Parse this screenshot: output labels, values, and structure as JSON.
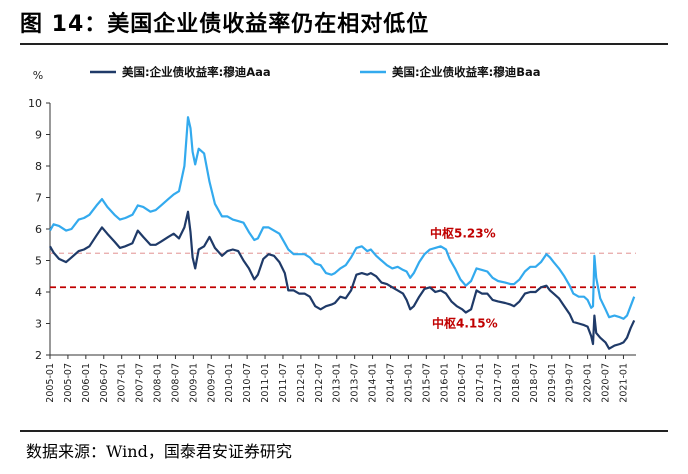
{
  "figure": {
    "title": "图 14：美国企业债收益率仍在相对低位",
    "source": "数据来源：Wind，国泰君安证券研究"
  },
  "chart_data": {
    "type": "line",
    "title": "美国企业债收益率仍在相对低位",
    "ylabel": "%",
    "ylim": [
      2,
      10
    ],
    "yticks": [
      2,
      3,
      4,
      5,
      6,
      7,
      8,
      9,
      10
    ],
    "x_range": [
      2005.0,
      2021.35
    ],
    "x_ticks": [
      "2005-01",
      "2005-07",
      "2006-01",
      "2006-07",
      "2007-01",
      "2007-07",
      "2008-01",
      "2008-07",
      "2009-01",
      "2009-07",
      "2010-01",
      "2010-07",
      "2011-01",
      "2011-07",
      "2012-01",
      "2012-07",
      "2013-01",
      "2013-07",
      "2014-01",
      "2014-07",
      "2015-01",
      "2015-07",
      "2016-01",
      "2016-07",
      "2017-01",
      "2017-07",
      "2018-01",
      "2018-07",
      "2019-01",
      "2019-07",
      "2020-01",
      "2020-07",
      "2021-01"
    ],
    "series": [
      {
        "name": "美国:企业债收益率:穆迪Aaa",
        "color": "#1f3a68",
        "points": [
          [
            2005.0,
            5.45
          ],
          [
            2005.1,
            5.25
          ],
          [
            2005.25,
            5.05
          ],
          [
            2005.45,
            4.95
          ],
          [
            2005.6,
            5.1
          ],
          [
            2005.8,
            5.3
          ],
          [
            2005.95,
            5.35
          ],
          [
            2006.1,
            5.45
          ],
          [
            2006.3,
            5.8
          ],
          [
            2006.45,
            6.05
          ],
          [
            2006.6,
            5.85
          ],
          [
            2006.8,
            5.6
          ],
          [
            2006.95,
            5.4
          ],
          [
            2007.1,
            5.45
          ],
          [
            2007.3,
            5.55
          ],
          [
            2007.45,
            5.95
          ],
          [
            2007.6,
            5.75
          ],
          [
            2007.8,
            5.5
          ],
          [
            2007.95,
            5.5
          ],
          [
            2008.1,
            5.6
          ],
          [
            2008.3,
            5.75
          ],
          [
            2008.45,
            5.85
          ],
          [
            2008.6,
            5.7
          ],
          [
            2008.75,
            6.05
          ],
          [
            2008.85,
            6.55
          ],
          [
            2008.92,
            5.9
          ],
          [
            2008.98,
            5.1
          ],
          [
            2009.05,
            4.75
          ],
          [
            2009.15,
            5.35
          ],
          [
            2009.3,
            5.45
          ],
          [
            2009.45,
            5.75
          ],
          [
            2009.6,
            5.4
          ],
          [
            2009.8,
            5.15
          ],
          [
            2009.95,
            5.3
          ],
          [
            2010.1,
            5.35
          ],
          [
            2010.25,
            5.3
          ],
          [
            2010.4,
            5.0
          ],
          [
            2010.55,
            4.75
          ],
          [
            2010.7,
            4.4
          ],
          [
            2010.8,
            4.55
          ],
          [
            2010.95,
            5.05
          ],
          [
            2011.1,
            5.2
          ],
          [
            2011.25,
            5.15
          ],
          [
            2011.4,
            4.95
          ],
          [
            2011.55,
            4.6
          ],
          [
            2011.65,
            4.05
          ],
          [
            2011.8,
            4.05
          ],
          [
            2011.95,
            3.95
          ],
          [
            2012.1,
            3.95
          ],
          [
            2012.25,
            3.85
          ],
          [
            2012.4,
            3.55
          ],
          [
            2012.55,
            3.45
          ],
          [
            2012.7,
            3.55
          ],
          [
            2012.85,
            3.6
          ],
          [
            2012.95,
            3.65
          ],
          [
            2013.1,
            3.85
          ],
          [
            2013.25,
            3.8
          ],
          [
            2013.4,
            4.05
          ],
          [
            2013.55,
            4.55
          ],
          [
            2013.7,
            4.6
          ],
          [
            2013.85,
            4.55
          ],
          [
            2013.95,
            4.6
          ],
          [
            2014.1,
            4.5
          ],
          [
            2014.25,
            4.3
          ],
          [
            2014.4,
            4.25
          ],
          [
            2014.55,
            4.15
          ],
          [
            2014.7,
            4.05
          ],
          [
            2014.85,
            3.95
          ],
          [
            2014.95,
            3.75
          ],
          [
            2015.05,
            3.45
          ],
          [
            2015.15,
            3.55
          ],
          [
            2015.3,
            3.85
          ],
          [
            2015.45,
            4.1
          ],
          [
            2015.6,
            4.15
          ],
          [
            2015.75,
            4.0
          ],
          [
            2015.9,
            4.05
          ],
          [
            2016.05,
            3.95
          ],
          [
            2016.2,
            3.7
          ],
          [
            2016.35,
            3.55
          ],
          [
            2016.5,
            3.45
          ],
          [
            2016.6,
            3.35
          ],
          [
            2016.75,
            3.45
          ],
          [
            2016.9,
            4.05
          ],
          [
            2017.05,
            3.95
          ],
          [
            2017.2,
            3.95
          ],
          [
            2017.35,
            3.75
          ],
          [
            2017.5,
            3.7
          ],
          [
            2017.7,
            3.65
          ],
          [
            2017.85,
            3.6
          ],
          [
            2017.95,
            3.55
          ],
          [
            2018.1,
            3.7
          ],
          [
            2018.25,
            3.95
          ],
          [
            2018.4,
            4.0
          ],
          [
            2018.55,
            4.0
          ],
          [
            2018.7,
            4.15
          ],
          [
            2018.85,
            4.2
          ],
          [
            2018.95,
            4.05
          ],
          [
            2019.05,
            3.95
          ],
          [
            2019.2,
            3.8
          ],
          [
            2019.35,
            3.55
          ],
          [
            2019.5,
            3.3
          ],
          [
            2019.6,
            3.05
          ],
          [
            2019.75,
            3.0
          ],
          [
            2019.9,
            2.95
          ],
          [
            2020.0,
            2.9
          ],
          [
            2020.1,
            2.6
          ],
          [
            2020.15,
            2.35
          ],
          [
            2020.19,
            3.25
          ],
          [
            2020.24,
            2.7
          ],
          [
            2020.35,
            2.55
          ],
          [
            2020.5,
            2.4
          ],
          [
            2020.6,
            2.2
          ],
          [
            2020.75,
            2.3
          ],
          [
            2020.9,
            2.35
          ],
          [
            2021.0,
            2.4
          ],
          [
            2021.1,
            2.55
          ],
          [
            2021.2,
            2.85
          ],
          [
            2021.3,
            3.1
          ]
        ]
      },
      {
        "name": "美国:企业债收益率:穆迪Baa",
        "color": "#33aaee",
        "points": [
          [
            2005.0,
            5.95
          ],
          [
            2005.1,
            6.15
          ],
          [
            2005.25,
            6.1
          ],
          [
            2005.45,
            5.95
          ],
          [
            2005.6,
            6.0
          ],
          [
            2005.8,
            6.3
          ],
          [
            2005.95,
            6.35
          ],
          [
            2006.1,
            6.45
          ],
          [
            2006.3,
            6.75
          ],
          [
            2006.45,
            6.95
          ],
          [
            2006.6,
            6.7
          ],
          [
            2006.8,
            6.45
          ],
          [
            2006.95,
            6.3
          ],
          [
            2007.1,
            6.35
          ],
          [
            2007.3,
            6.45
          ],
          [
            2007.45,
            6.75
          ],
          [
            2007.6,
            6.7
          ],
          [
            2007.8,
            6.55
          ],
          [
            2007.95,
            6.6
          ],
          [
            2008.1,
            6.75
          ],
          [
            2008.3,
            6.95
          ],
          [
            2008.45,
            7.1
          ],
          [
            2008.6,
            7.2
          ],
          [
            2008.75,
            8.0
          ],
          [
            2008.85,
            9.55
          ],
          [
            2008.92,
            9.2
          ],
          [
            2008.98,
            8.45
          ],
          [
            2009.05,
            8.05
          ],
          [
            2009.15,
            8.55
          ],
          [
            2009.3,
            8.4
          ],
          [
            2009.45,
            7.5
          ],
          [
            2009.6,
            6.8
          ],
          [
            2009.8,
            6.4
          ],
          [
            2009.95,
            6.4
          ],
          [
            2010.1,
            6.3
          ],
          [
            2010.25,
            6.25
          ],
          [
            2010.4,
            6.2
          ],
          [
            2010.55,
            5.9
          ],
          [
            2010.7,
            5.65
          ],
          [
            2010.8,
            5.7
          ],
          [
            2010.95,
            6.05
          ],
          [
            2011.1,
            6.05
          ],
          [
            2011.25,
            5.95
          ],
          [
            2011.4,
            5.85
          ],
          [
            2011.55,
            5.55
          ],
          [
            2011.65,
            5.35
          ],
          [
            2011.8,
            5.2
          ],
          [
            2011.95,
            5.2
          ],
          [
            2012.1,
            5.2
          ],
          [
            2012.25,
            5.1
          ],
          [
            2012.4,
            4.9
          ],
          [
            2012.55,
            4.85
          ],
          [
            2012.7,
            4.6
          ],
          [
            2012.85,
            4.55
          ],
          [
            2012.95,
            4.6
          ],
          [
            2013.1,
            4.75
          ],
          [
            2013.25,
            4.85
          ],
          [
            2013.4,
            5.1
          ],
          [
            2013.55,
            5.4
          ],
          [
            2013.7,
            5.45
          ],
          [
            2013.85,
            5.3
          ],
          [
            2013.95,
            5.35
          ],
          [
            2014.1,
            5.15
          ],
          [
            2014.25,
            5.0
          ],
          [
            2014.4,
            4.85
          ],
          [
            2014.55,
            4.75
          ],
          [
            2014.7,
            4.8
          ],
          [
            2014.85,
            4.7
          ],
          [
            2014.95,
            4.65
          ],
          [
            2015.05,
            4.45
          ],
          [
            2015.15,
            4.6
          ],
          [
            2015.3,
            4.95
          ],
          [
            2015.45,
            5.2
          ],
          [
            2015.6,
            5.35
          ],
          [
            2015.75,
            5.4
          ],
          [
            2015.9,
            5.45
          ],
          [
            2016.05,
            5.35
          ],
          [
            2016.15,
            5.05
          ],
          [
            2016.3,
            4.75
          ],
          [
            2016.45,
            4.4
          ],
          [
            2016.6,
            4.2
          ],
          [
            2016.75,
            4.35
          ],
          [
            2016.9,
            4.75
          ],
          [
            2017.05,
            4.7
          ],
          [
            2017.2,
            4.65
          ],
          [
            2017.35,
            4.45
          ],
          [
            2017.5,
            4.35
          ],
          [
            2017.7,
            4.3
          ],
          [
            2017.85,
            4.25
          ],
          [
            2017.95,
            4.25
          ],
          [
            2018.1,
            4.4
          ],
          [
            2018.25,
            4.65
          ],
          [
            2018.4,
            4.8
          ],
          [
            2018.55,
            4.8
          ],
          [
            2018.7,
            4.95
          ],
          [
            2018.85,
            5.2
          ],
          [
            2018.95,
            5.1
          ],
          [
            2019.05,
            4.95
          ],
          [
            2019.2,
            4.75
          ],
          [
            2019.35,
            4.5
          ],
          [
            2019.5,
            4.2
          ],
          [
            2019.6,
            3.95
          ],
          [
            2019.75,
            3.85
          ],
          [
            2019.9,
            3.85
          ],
          [
            2020.0,
            3.75
          ],
          [
            2020.1,
            3.5
          ],
          [
            2020.15,
            3.55
          ],
          [
            2020.19,
            5.15
          ],
          [
            2020.24,
            4.45
          ],
          [
            2020.35,
            3.8
          ],
          [
            2020.5,
            3.45
          ],
          [
            2020.6,
            3.2
          ],
          [
            2020.75,
            3.25
          ],
          [
            2020.9,
            3.2
          ],
          [
            2021.0,
            3.15
          ],
          [
            2021.1,
            3.25
          ],
          [
            2021.2,
            3.55
          ],
          [
            2021.3,
            3.85
          ]
        ]
      }
    ],
    "reference_lines": [
      {
        "name": "中枢5.23%",
        "value": 5.23,
        "color": "#e8a6a6",
        "style": "dashed"
      },
      {
        "name": "中枢4.15%",
        "value": 4.15,
        "color": "#c00000",
        "style": "dashed"
      }
    ],
    "legend_position": "top"
  }
}
